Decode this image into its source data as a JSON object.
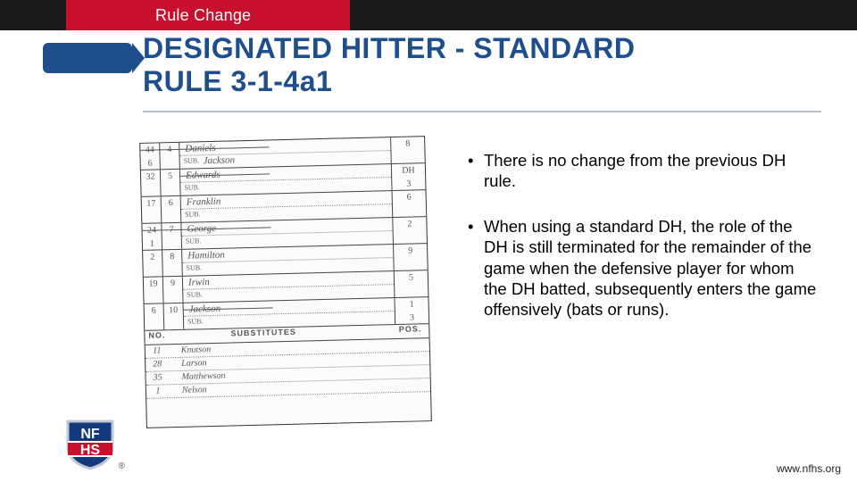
{
  "header": {
    "tab_label": "Rule Change"
  },
  "title": {
    "line1": "DESIGNATED HITTER - STANDARD",
    "line2": "RULE 3-1-4a1"
  },
  "bullets": {
    "item1": "There is no change from the previous DH rule.",
    "item2": "When using a standard DH, the role of the DH is still terminated for the remainder of the game when the defensive player for whom the DH batted, subsequently enters the game offensively (bats or runs)."
  },
  "lineup": {
    "rows": [
      {
        "no": "44",
        "bo": "4",
        "name": "Daniels",
        "sub": "Jackson",
        "pos": "8",
        "struck": true,
        "no2": "6",
        "subpos": ""
      },
      {
        "no": "32",
        "bo": "5",
        "name": "Edwards",
        "sub": "",
        "pos": "DH",
        "struck": true,
        "subpos": "3"
      },
      {
        "no": "17",
        "bo": "6",
        "name": "Franklin",
        "sub": "",
        "pos": "6",
        "subpos": ""
      },
      {
        "no": "24",
        "bo": "7",
        "name": "George",
        "sub": "",
        "pos": "2",
        "struck": true,
        "no2": "1",
        "subpos": ""
      },
      {
        "no": "2",
        "bo": "8",
        "name": "Hamilton",
        "sub": "",
        "pos": "9",
        "subpos": ""
      },
      {
        "no": "19",
        "bo": "9",
        "name": "Irwin",
        "sub": "",
        "pos": "5",
        "subpos": ""
      },
      {
        "no": "6",
        "bo": "10",
        "name": "Jackson",
        "sub": "",
        "pos": "1",
        "struck": true,
        "subpos": "3"
      }
    ],
    "substitutes_label": "SUBSTITUTES",
    "sub_header": {
      "left": "NO.",
      "right": "POS."
    },
    "subs": [
      {
        "no": "11",
        "name": "Knutson"
      },
      {
        "no": "28",
        "name": "Larson"
      },
      {
        "no": "35",
        "name": "Matthewson"
      },
      {
        "no": "1",
        "name": "Nelson"
      }
    ]
  },
  "logo": {
    "line1": "NF",
    "line2": "HS",
    "trademark": "®",
    "blue": "#133a7c",
    "red": "#c8102e",
    "border": "#bfc7d6"
  },
  "footer": {
    "url": "www.nfhs.org"
  },
  "colors": {
    "red": "#c8102e",
    "blue": "#1f4e8c",
    "hr": "#b9c3cf"
  }
}
